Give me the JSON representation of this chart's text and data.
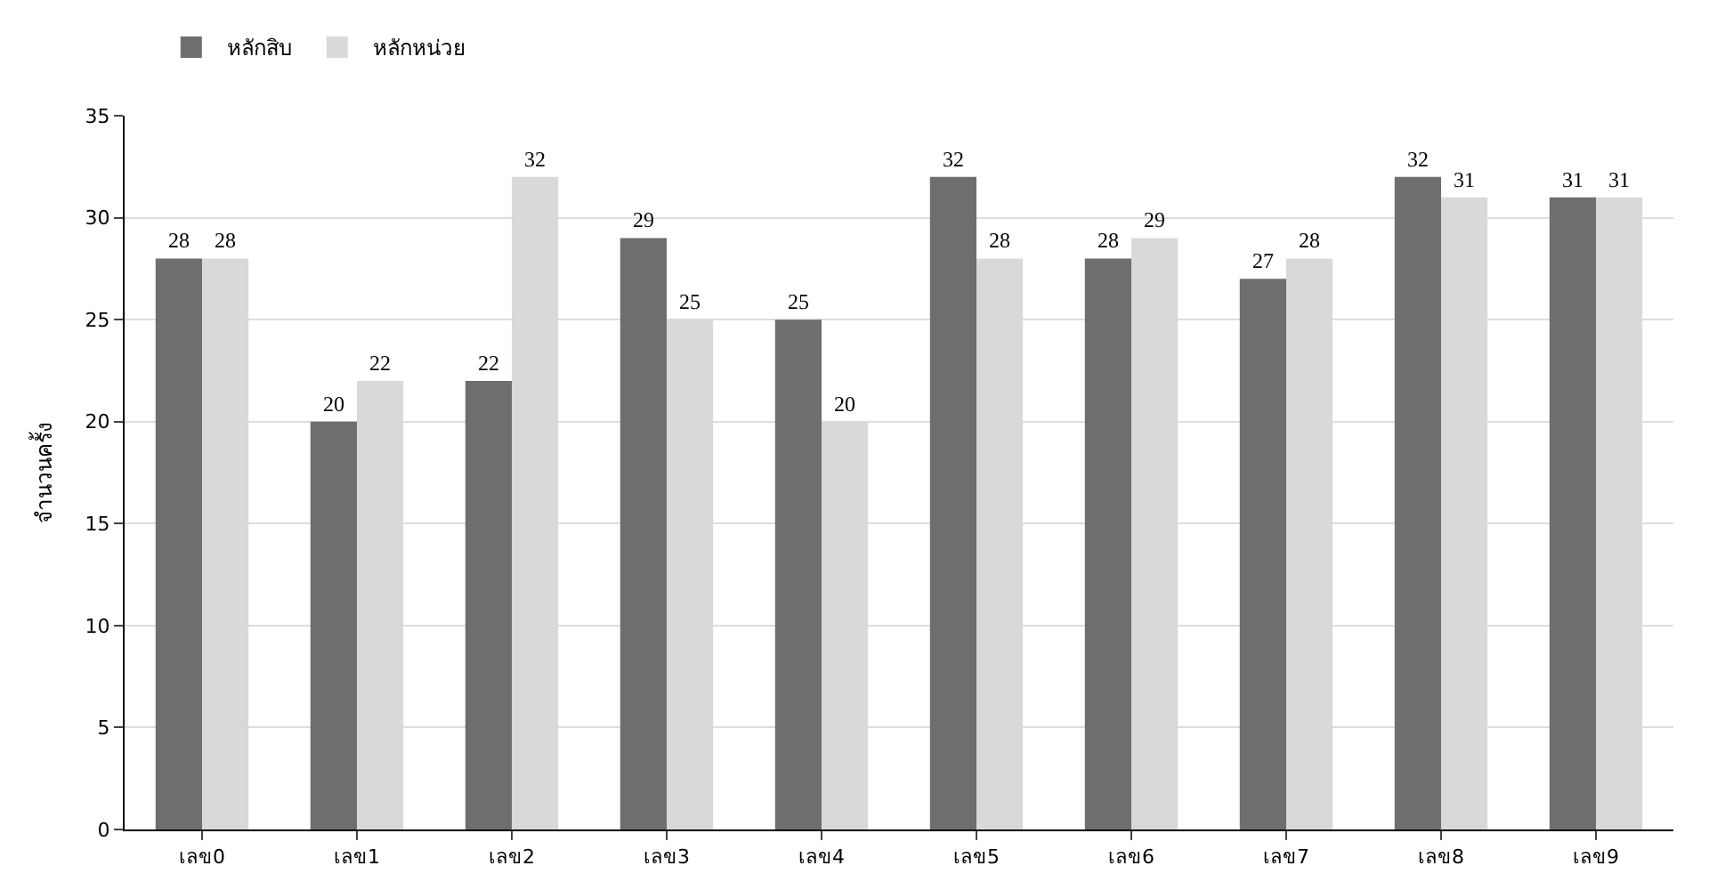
{
  "chart_data": {
    "type": "bar",
    "ylabel": "จำนวนครั้ง",
    "categories": [
      "เลข0",
      "เลข1",
      "เลข2",
      "เลข3",
      "เลข4",
      "เลข5",
      "เลข6",
      "เลข7",
      "เลข8",
      "เลข9"
    ],
    "series": [
      {
        "name": "หลักสิบ",
        "color": "#6d6e70",
        "values": [
          28,
          20,
          22,
          29,
          25,
          32,
          28,
          27,
          32,
          31
        ]
      },
      {
        "name": "หลักหน่วย",
        "color": "#d9d9d9",
        "values": [
          28,
          22,
          32,
          25,
          20,
          28,
          29,
          28,
          31,
          31
        ]
      }
    ],
    "ylim": [
      0,
      35
    ],
    "yticks": [
      0,
      5,
      10,
      15,
      20,
      25,
      30,
      35
    ],
    "grid": "y",
    "legend": "top left",
    "data_labels": true
  }
}
